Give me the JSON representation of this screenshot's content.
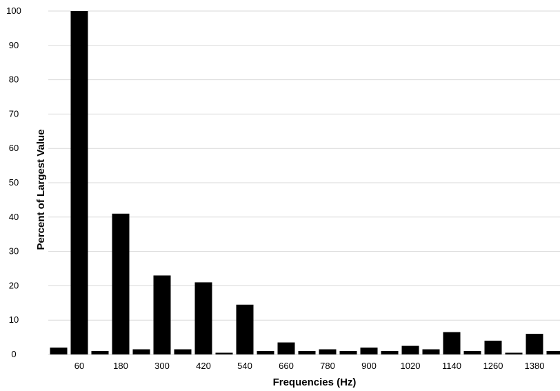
{
  "chart_data": {
    "type": "bar",
    "title": "",
    "xlabel": "Frequencies (Hz)",
    "ylabel": "Percent of Largest Value",
    "ylim": [
      0,
      100
    ],
    "yticks": [
      0,
      10,
      20,
      30,
      40,
      50,
      60,
      70,
      80,
      90,
      100
    ],
    "grid": "horizontal",
    "legend": "none",
    "bar_color": "#000000",
    "grid_color": "#d9d9d9",
    "x_tick_labels": [
      "60",
      "180",
      "300",
      "420",
      "540",
      "660",
      "780",
      "900",
      "1020",
      "1140",
      "1260",
      "1380"
    ],
    "categories": [
      "0",
      "60",
      "120",
      "180",
      "240",
      "300",
      "360",
      "420",
      "480",
      "540",
      "600",
      "660",
      "720",
      "780",
      "840",
      "900",
      "960",
      "1020",
      "1080",
      "1140",
      "1200",
      "1260",
      "1320",
      "1380",
      "1440"
    ],
    "values": [
      2,
      100,
      1,
      41,
      1.5,
      23,
      1.5,
      21,
      0.5,
      14.5,
      1,
      3.5,
      1,
      1.5,
      1,
      2,
      1,
      2.5,
      1.5,
      6.5,
      1,
      4,
      0.5,
      6,
      1
    ]
  }
}
